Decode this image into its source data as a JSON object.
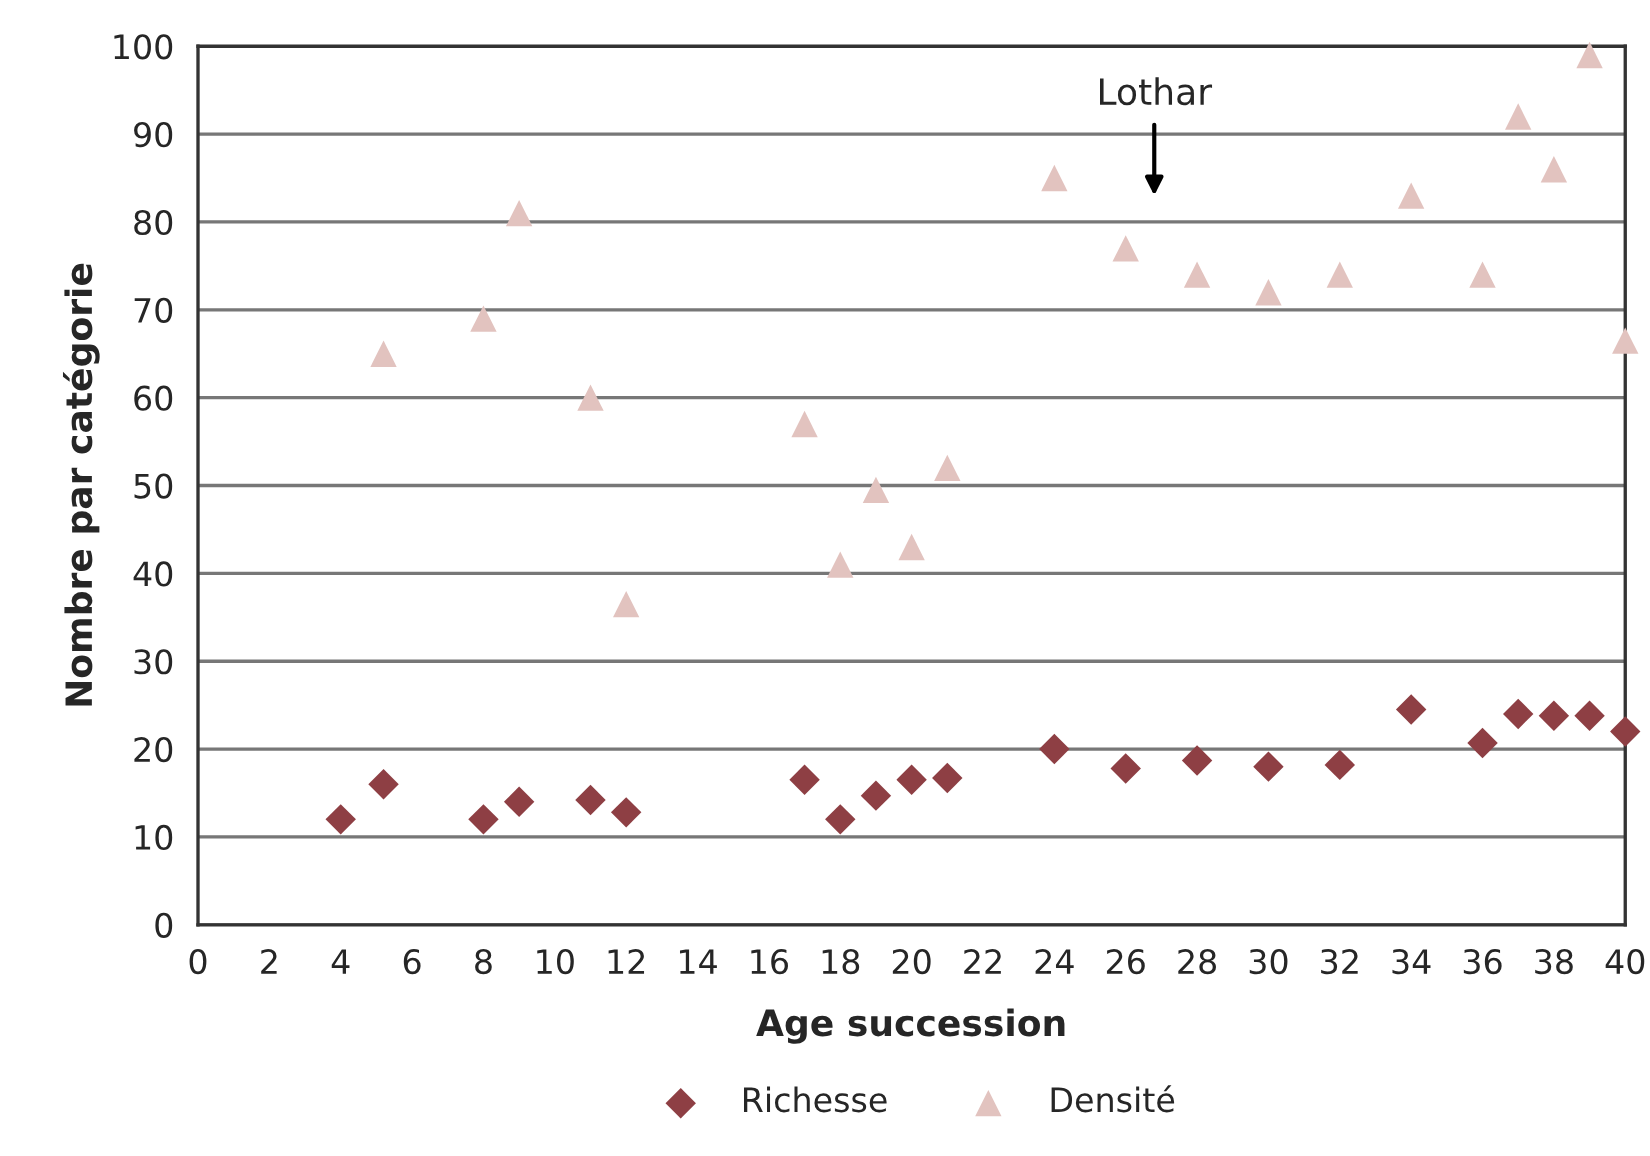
{
  "chart_data": {
    "type": "scatter",
    "xlabel": "Age succession",
    "ylabel": "Nombre par catégorie",
    "series": [
      {
        "name": "Richesse",
        "color": "#8e3f44",
        "marker": "diamond",
        "x": [
          4,
          5.2,
          8,
          9,
          11,
          12,
          17,
          18,
          19,
          20,
          21,
          24,
          26,
          28,
          30,
          32,
          34,
          36,
          37,
          38,
          39,
          40
        ],
        "values": [
          12,
          16,
          12,
          14,
          14.2,
          12.8,
          16.5,
          12,
          14.7,
          16.5,
          16.7,
          20,
          17.8,
          18.7,
          18,
          18.2,
          24.5,
          20.7,
          24,
          23.8,
          23.8,
          22
        ]
      },
      {
        "name": "Densité",
        "color": "#e2c3bf",
        "marker": "triangle",
        "x": [
          5.2,
          8,
          9,
          11,
          12,
          17,
          18,
          19,
          20,
          21,
          24,
          26,
          28,
          30,
          32,
          34,
          36,
          37,
          38,
          39,
          40
        ],
        "values": [
          65,
          69,
          81,
          60,
          36.5,
          57,
          41,
          49.5,
          43,
          52,
          85,
          77,
          74,
          72,
          74,
          83,
          74,
          92,
          86,
          99,
          66.5
        ]
      }
    ],
    "annotations": [
      "Lothar"
    ],
    "xlim": [
      0,
      40
    ],
    "xticks": [
      0,
      2,
      4,
      6,
      8,
      10,
      12,
      14,
      16,
      18,
      20,
      22,
      24,
      26,
      28,
      30,
      32,
      34,
      36,
      38,
      40
    ],
    "ylim": [
      0,
      100
    ],
    "yticks": [
      0,
      10,
      20,
      30,
      40,
      50,
      60,
      70,
      80,
      90,
      100
    ],
    "grid": "y",
    "legend": "bottom"
  }
}
